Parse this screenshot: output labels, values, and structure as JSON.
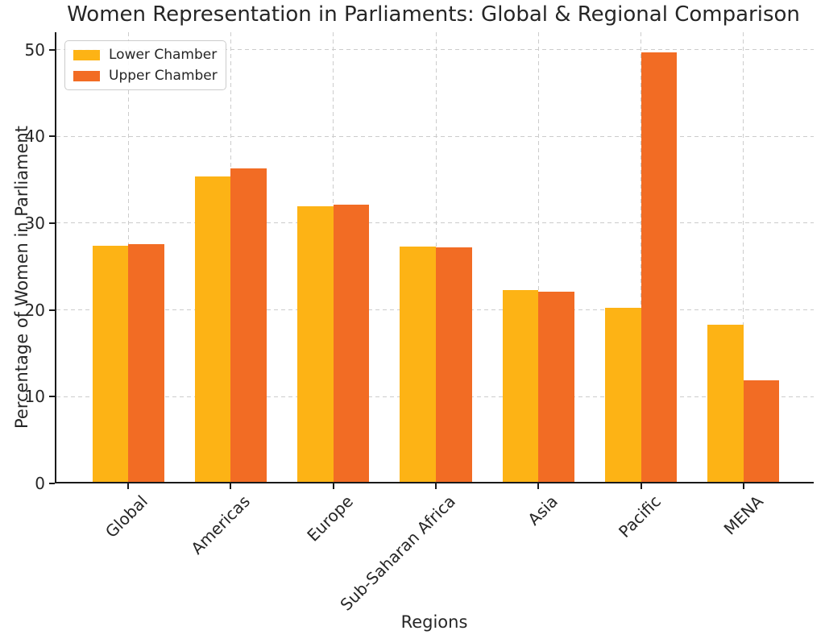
{
  "chart_data": {
    "type": "bar",
    "title": "Women Representation in Parliaments: Global & Regional Comparison",
    "xlabel": "Regions",
    "ylabel": "Percentage of Women in Parliament",
    "categories": [
      "Global",
      "Americas",
      "Europe",
      "Sub-Saharan Africa",
      "Asia",
      "Pacific",
      "MENA"
    ],
    "series": [
      {
        "name": "Lower Chamber",
        "color": "#FDB315",
        "values": [
          27.2,
          35.2,
          31.8,
          27.1,
          22.1,
          20.1,
          18.1
        ]
      },
      {
        "name": "Upper Chamber",
        "color": "#F26C24",
        "values": [
          27.4,
          36.1,
          31.9,
          27.0,
          21.9,
          49.5,
          11.7
        ]
      }
    ],
    "ylim": [
      0,
      52
    ],
    "yticks": [
      0,
      10,
      20,
      30,
      40,
      50
    ],
    "grid": true,
    "grid_style": "dashed",
    "legend_position": "upper left",
    "background_color": "#ffffff",
    "spine_color": "#1a1a1a",
    "grid_color": "#cccccc"
  }
}
